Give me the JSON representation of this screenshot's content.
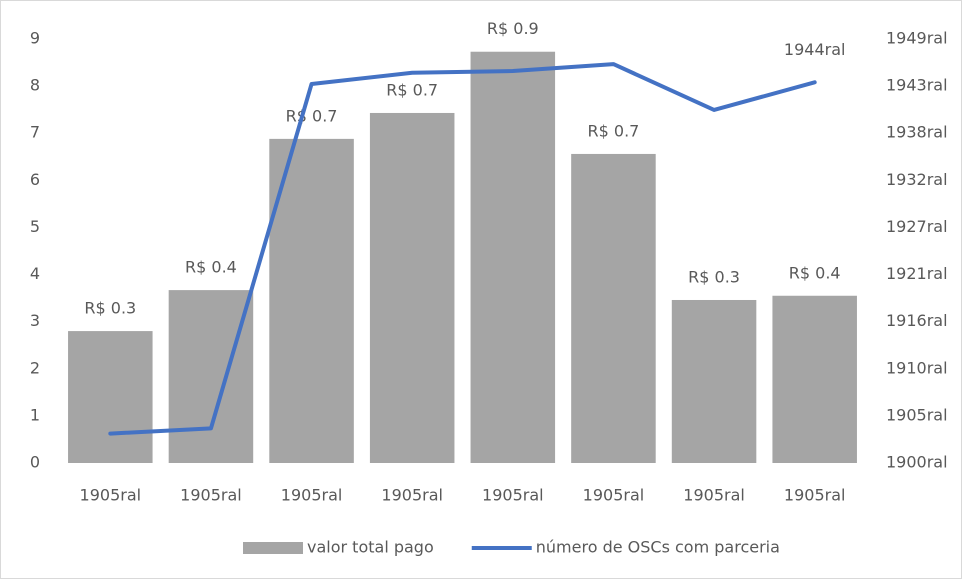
{
  "chart_data": {
    "type": "bar_line",
    "categories": [
      "1905ral",
      "1905ral",
      "1905ral",
      "1905ral",
      "1905ral",
      "1905ral",
      "1905ral",
      "1905ral"
    ],
    "series": [
      {
        "name": "valor total pago",
        "type": "bar",
        "color": "#a5a5a5",
        "values": [
          2.8,
          3.67,
          6.88,
          7.43,
          8.73,
          6.56,
          3.46,
          3.55
        ]
      },
      {
        "name": "número de OSCs com parceria",
        "type": "line",
        "axis": "y2",
        "color": "#4472c4",
        "values": [
          1903.4,
          1904.0,
          1943.8,
          1945.1,
          1945.3,
          1946.1,
          1940.8,
          1944
        ],
        "value_labels": [
          null,
          null,
          null,
          null,
          null,
          null,
          null,
          "1944ral"
        ]
      }
    ],
    "annotations": [
      "R$ 0.3",
      "R$ 0.4",
      "R$ 0.7",
      "R$ 0.7",
      "R$ 0.9",
      "R$ 0.7",
      "R$ 0.3",
      "R$ 0.4"
    ],
    "ylim": [
      0,
      9
    ],
    "yticks": [
      0,
      1,
      2,
      3,
      4,
      5,
      6,
      7,
      8,
      9
    ],
    "y2lim": [
      1900,
      1949
    ],
    "y2ticks": [
      {
        "value": 1900,
        "label": "1900ral"
      },
      {
        "value": 1905.44,
        "label": "1905ral"
      },
      {
        "value": 1910.89,
        "label": "1910ral"
      },
      {
        "value": 1916.33,
        "label": "1916ral"
      },
      {
        "value": 1921.78,
        "label": "1921ral"
      },
      {
        "value": 1927.22,
        "label": "1927ral"
      },
      {
        "value": 1932.67,
        "label": "1932ral"
      },
      {
        "value": 1938.11,
        "label": "1938ral"
      },
      {
        "value": 1943.56,
        "label": "1943ral"
      },
      {
        "value": 1949,
        "label": "1949ral"
      }
    ],
    "legend": "bottom"
  }
}
